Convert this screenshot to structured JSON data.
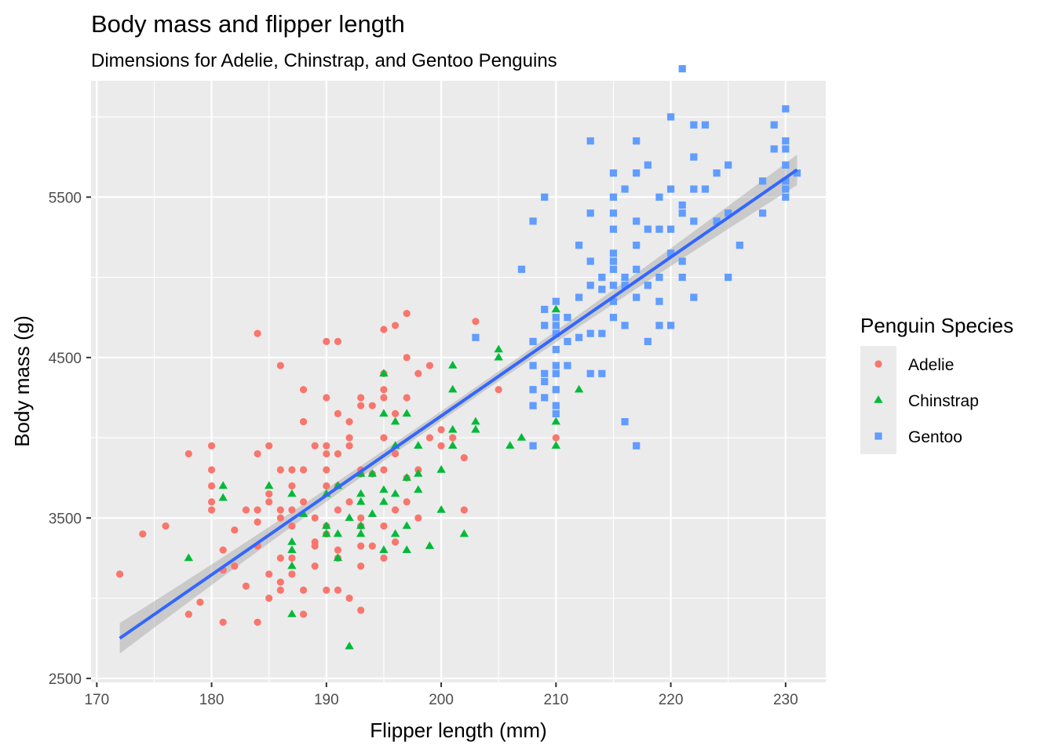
{
  "chart_data": {
    "type": "scatter",
    "title": "Body mass and flipper length",
    "subtitle": "Dimensions for Adelie, Chinstrap, and Gentoo Penguins",
    "xlabel": "Flipper length (mm)",
    "ylabel": "Body mass (g)",
    "xlim": [
      169.5,
      233.5
    ],
    "ylim": [
      2475,
      6225
    ],
    "x_ticks": [
      170,
      180,
      190,
      200,
      210,
      220,
      230
    ],
    "y_ticks": [
      2500,
      3500,
      4500,
      5500
    ],
    "x_tick_labels": [
      "170",
      "180",
      "190",
      "200",
      "210",
      "220",
      "230"
    ],
    "y_tick_labels": [
      "2500",
      "3500",
      "4500",
      "5500"
    ],
    "grid": true,
    "legend": {
      "title": "Penguin Species",
      "position": "right",
      "entries": [
        "Adelie",
        "Chinstrap",
        "Gentoo"
      ]
    },
    "colors": {
      "Adelie": "#F8766D",
      "Chinstrap": "#00BA38",
      "Gentoo": "#619CFF",
      "trend": "#3366FF",
      "ribbon": "#999999",
      "panel": "#EBEBEB"
    },
    "trend_line": {
      "method": "linear",
      "x": [
        172,
        231
      ],
      "y": [
        2750,
        5670
      ]
    },
    "series": [
      {
        "name": "Adelie",
        "marker": "circle",
        "points": [
          [
            172,
            3150
          ],
          [
            174,
            3400
          ],
          [
            176,
            3450
          ],
          [
            178,
            3900
          ],
          [
            178,
            2900
          ],
          [
            179,
            2975
          ],
          [
            180,
            3950
          ],
          [
            180,
            3800
          ],
          [
            180,
            3700
          ],
          [
            180,
            3600
          ],
          [
            180,
            3550
          ],
          [
            181,
            3300
          ],
          [
            181,
            2850
          ],
          [
            181,
            3175
          ],
          [
            182,
            3425
          ],
          [
            182,
            3200
          ],
          [
            183,
            3550
          ],
          [
            183,
            3075
          ],
          [
            184,
            4650
          ],
          [
            184,
            3900
          ],
          [
            184,
            3550
          ],
          [
            184,
            3475
          ],
          [
            184,
            2850
          ],
          [
            184,
            3325
          ],
          [
            185,
            3950
          ],
          [
            185,
            3650
          ],
          [
            185,
            3600
          ],
          [
            185,
            3150
          ],
          [
            185,
            3000
          ],
          [
            186,
            4450
          ],
          [
            186,
            3800
          ],
          [
            186,
            3550
          ],
          [
            186,
            3500
          ],
          [
            186,
            3250
          ],
          [
            186,
            3100
          ],
          [
            186,
            3050
          ],
          [
            187,
            3800
          ],
          [
            187,
            3700
          ],
          [
            187,
            3550
          ],
          [
            187,
            3450
          ],
          [
            187,
            3250
          ],
          [
            187,
            3150
          ],
          [
            188,
            4300
          ],
          [
            188,
            4100
          ],
          [
            188,
            3800
          ],
          [
            188,
            3600
          ],
          [
            188,
            3050
          ],
          [
            188,
            2900
          ],
          [
            189,
            3950
          ],
          [
            189,
            3500
          ],
          [
            189,
            3350
          ],
          [
            189,
            3325
          ],
          [
            189,
            3200
          ],
          [
            190,
            4600
          ],
          [
            190,
            4250
          ],
          [
            190,
            3950
          ],
          [
            190,
            3900
          ],
          [
            190,
            3800
          ],
          [
            190,
            3700
          ],
          [
            190,
            3450
          ],
          [
            190,
            3400
          ],
          [
            190,
            3050
          ],
          [
            191,
            4600
          ],
          [
            191,
            4150
          ],
          [
            191,
            3900
          ],
          [
            191,
            3700
          ],
          [
            191,
            3550
          ],
          [
            191,
            3300
          ],
          [
            191,
            3250
          ],
          [
            191,
            3050
          ],
          [
            192,
            4100
          ],
          [
            192,
            4000
          ],
          [
            192,
            3950
          ],
          [
            192,
            3600
          ],
          [
            192,
            3000
          ],
          [
            193,
            4250
          ],
          [
            193,
            4200
          ],
          [
            193,
            3800
          ],
          [
            193,
            3775
          ],
          [
            193,
            3500
          ],
          [
            193,
            3450
          ],
          [
            193,
            3325
          ],
          [
            193,
            3200
          ],
          [
            193,
            2925
          ],
          [
            194,
            4200
          ],
          [
            194,
            3775
          ],
          [
            194,
            3325
          ],
          [
            195,
            4675
          ],
          [
            195,
            4400
          ],
          [
            195,
            4300
          ],
          [
            195,
            4250
          ],
          [
            195,
            4000
          ],
          [
            195,
            3800
          ],
          [
            195,
            3450
          ],
          [
            195,
            3250
          ],
          [
            196,
            4700
          ],
          [
            196,
            4150
          ],
          [
            196,
            3900
          ],
          [
            196,
            3550
          ],
          [
            196,
            3350
          ],
          [
            197,
            4775
          ],
          [
            197,
            4500
          ],
          [
            197,
            4250
          ],
          [
            197,
            3750
          ],
          [
            197,
            3600
          ],
          [
            198,
            4400
          ],
          [
            198,
            3800
          ],
          [
            198,
            3500
          ],
          [
            199,
            4450
          ],
          [
            199,
            4000
          ],
          [
            200,
            3950
          ],
          [
            200,
            4050
          ],
          [
            201,
            4000
          ],
          [
            202,
            3875
          ],
          [
            202,
            3550
          ],
          [
            203,
            4725
          ],
          [
            205,
            4300
          ],
          [
            210,
            4000
          ]
        ]
      },
      {
        "name": "Chinstrap",
        "marker": "triangle",
        "points": [
          [
            178,
            3250
          ],
          [
            181,
            3700
          ],
          [
            181,
            3625
          ],
          [
            185,
            3700
          ],
          [
            187,
            3650
          ],
          [
            187,
            3350
          ],
          [
            187,
            3300
          ],
          [
            187,
            3200
          ],
          [
            187,
            2900
          ],
          [
            188,
            3525
          ],
          [
            190,
            3650
          ],
          [
            190,
            3450
          ],
          [
            190,
            3400
          ],
          [
            191,
            3700
          ],
          [
            191,
            3400
          ],
          [
            191,
            3250
          ],
          [
            192,
            3500
          ],
          [
            192,
            2700
          ],
          [
            193,
            3775
          ],
          [
            193,
            3650
          ],
          [
            193,
            3600
          ],
          [
            193,
            3450
          ],
          [
            193,
            3400
          ],
          [
            194,
            3775
          ],
          [
            194,
            3525
          ],
          [
            195,
            4400
          ],
          [
            195,
            4150
          ],
          [
            195,
            3675
          ],
          [
            195,
            3600
          ],
          [
            195,
            3300
          ],
          [
            196,
            4100
          ],
          [
            196,
            3950
          ],
          [
            196,
            3650
          ],
          [
            196,
            3400
          ],
          [
            197,
            4150
          ],
          [
            197,
            3750
          ],
          [
            197,
            3450
          ],
          [
            197,
            3300
          ],
          [
            198,
            3950
          ],
          [
            198,
            3775
          ],
          [
            198,
            3675
          ],
          [
            199,
            3325
          ],
          [
            200,
            3800
          ],
          [
            200,
            3550
          ],
          [
            201,
            4450
          ],
          [
            201,
            4300
          ],
          [
            201,
            4050
          ],
          [
            201,
            3950
          ],
          [
            202,
            3400
          ],
          [
            203,
            4100
          ],
          [
            203,
            4050
          ],
          [
            205,
            4550
          ],
          [
            205,
            4500
          ],
          [
            206,
            3950
          ],
          [
            207,
            4000
          ],
          [
            210,
            4800
          ],
          [
            210,
            4100
          ],
          [
            210,
            3950
          ],
          [
            212,
            4300
          ]
        ]
      },
      {
        "name": "Gentoo",
        "marker": "square",
        "points": [
          [
            203,
            4625
          ],
          [
            207,
            5050
          ],
          [
            208,
            5350
          ],
          [
            208,
            4600
          ],
          [
            208,
            4450
          ],
          [
            208,
            4300
          ],
          [
            208,
            4200
          ],
          [
            208,
            3950
          ],
          [
            209,
            5500
          ],
          [
            209,
            4800
          ],
          [
            209,
            4700
          ],
          [
            209,
            4400
          ],
          [
            209,
            4350
          ],
          [
            209,
            4250
          ],
          [
            210,
            4850
          ],
          [
            210,
            4750
          ],
          [
            210,
            4700
          ],
          [
            210,
            4650
          ],
          [
            210,
            4550
          ],
          [
            210,
            4450
          ],
          [
            210,
            4400
          ],
          [
            210,
            4300
          ],
          [
            210,
            4200
          ],
          [
            210,
            4150
          ],
          [
            211,
            4750
          ],
          [
            211,
            4600
          ],
          [
            211,
            4450
          ],
          [
            212,
            5200
          ],
          [
            212,
            4875
          ],
          [
            212,
            4625
          ],
          [
            213,
            5850
          ],
          [
            213,
            5400
          ],
          [
            213,
            5100
          ],
          [
            213,
            4950
          ],
          [
            213,
            4650
          ],
          [
            213,
            4400
          ],
          [
            214,
            5000
          ],
          [
            214,
            4925
          ],
          [
            214,
            4650
          ],
          [
            214,
            4400
          ],
          [
            215,
            5650
          ],
          [
            215,
            5500
          ],
          [
            215,
            5400
          ],
          [
            215,
            5300
          ],
          [
            215,
            5150
          ],
          [
            215,
            5100
          ],
          [
            215,
            5050
          ],
          [
            215,
            4950
          ],
          [
            215,
            4850
          ],
          [
            215,
            4750
          ],
          [
            216,
            5550
          ],
          [
            216,
            5000
          ],
          [
            216,
            4950
          ],
          [
            216,
            4700
          ],
          [
            216,
            4100
          ],
          [
            217,
            5850
          ],
          [
            217,
            5650
          ],
          [
            217,
            5350
          ],
          [
            217,
            5200
          ],
          [
            217,
            5050
          ],
          [
            217,
            4875
          ],
          [
            217,
            3950
          ],
          [
            218,
            5700
          ],
          [
            218,
            5300
          ],
          [
            218,
            4950
          ],
          [
            218,
            4600
          ],
          [
            219,
            5500
          ],
          [
            219,
            5300
          ],
          [
            219,
            5000
          ],
          [
            219,
            4850
          ],
          [
            219,
            4700
          ],
          [
            220,
            6000
          ],
          [
            220,
            5550
          ],
          [
            220,
            5300
          ],
          [
            220,
            5150
          ],
          [
            220,
            4700
          ],
          [
            221,
            6300
          ],
          [
            221,
            5450
          ],
          [
            221,
            5400
          ],
          [
            221,
            5100
          ],
          [
            221,
            5000
          ],
          [
            222,
            5950
          ],
          [
            222,
            5750
          ],
          [
            222,
            5550
          ],
          [
            222,
            5350
          ],
          [
            222,
            4875
          ],
          [
            223,
            5950
          ],
          [
            223,
            5550
          ],
          [
            224,
            5650
          ],
          [
            224,
            5350
          ],
          [
            225,
            5700
          ],
          [
            225,
            5400
          ],
          [
            225,
            5000
          ],
          [
            226,
            5200
          ],
          [
            228,
            5600
          ],
          [
            228,
            5400
          ],
          [
            229,
            5950
          ],
          [
            229,
            5800
          ],
          [
            230,
            6050
          ],
          [
            230,
            5850
          ],
          [
            230,
            5800
          ],
          [
            230,
            5700
          ],
          [
            230,
            5600
          ],
          [
            230,
            5550
          ],
          [
            230,
            5500
          ],
          [
            231,
            5650
          ]
        ]
      }
    ]
  }
}
